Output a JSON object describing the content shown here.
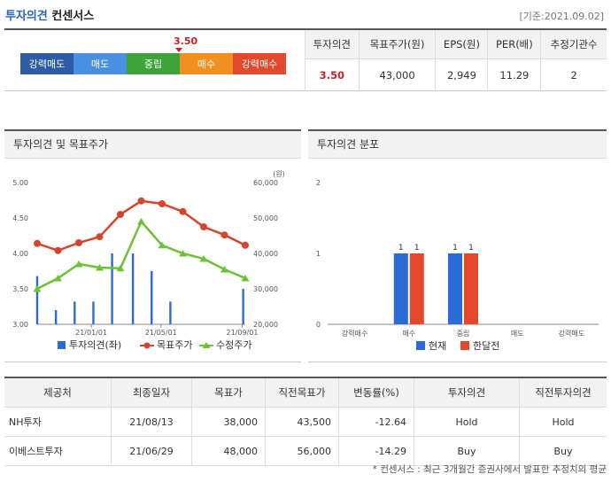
{
  "header": {
    "title_highlight": "투자의견",
    "title_rest": " 컨센서스",
    "basis": "[기준:2021.09.02]"
  },
  "scale": {
    "labels": [
      "강력매도",
      "매도",
      "중립",
      "매수",
      "강력매수"
    ],
    "colors": [
      "#2d5ba6",
      "#4a90e2",
      "#3fa33b",
      "#f2901f",
      "#e2492b"
    ],
    "current_value": "3.50"
  },
  "summary": {
    "headers": [
      "투자의견",
      "목표주가(원)",
      "EPS(원)",
      "PER(배)",
      "추정기관수"
    ],
    "values": [
      "3.50",
      "43,000",
      "2,949",
      "11.29",
      "2"
    ]
  },
  "panels": {
    "left_title": "투자의견 및 목표주가",
    "right_title": "투자의견 분포"
  },
  "chart_data": [
    {
      "type": "bar+line",
      "title": "투자의견 및 목표주가",
      "unit_label": "(원)",
      "y_left_ticks": [
        "5.00",
        "4.50",
        "4.00",
        "3.50",
        "3.00"
      ],
      "y_left_range": [
        3.0,
        5.0
      ],
      "y_right_ticks": [
        "60,000",
        "50,000",
        "40,000",
        "30,000",
        "20,000"
      ],
      "y_right_range": [
        20000,
        60000
      ],
      "x_ticks": [
        "21/01/01",
        "21/05/01",
        "21/09/01"
      ],
      "legend": [
        "투자의견(좌)",
        "목표주가",
        "수정주가"
      ],
      "colors": {
        "opinion": "#2b6bd6",
        "target": "#d8432c",
        "price": "#6cc236"
      },
      "opinion_bars": [
        {
          "x": 0.0,
          "value": 3.68
        },
        {
          "x": 0.09,
          "value": 3.2
        },
        {
          "x": 0.18,
          "value": 3.32
        },
        {
          "x": 0.27,
          "value": 3.32
        },
        {
          "x": 0.36,
          "value": 4.0
        },
        {
          "x": 0.46,
          "value": 4.0
        },
        {
          "x": 0.55,
          "value": 3.75
        },
        {
          "x": 0.64,
          "value": 3.32
        },
        {
          "x": 0.99,
          "value": 3.5
        }
      ],
      "target_price": [
        42800,
        40800,
        43000,
        44700,
        51000,
        54800,
        54000,
        51800,
        47500,
        45200,
        42300
      ],
      "adjusted_price": [
        30000,
        33000,
        37000,
        36000,
        35800,
        49000,
        42300,
        40000,
        38500,
        35500,
        33000
      ]
    },
    {
      "type": "bar",
      "title": "투자의견 분포",
      "categories": [
        "강력매수",
        "매수",
        "중립",
        "매도",
        "강력매도"
      ],
      "y_ticks": [
        "2",
        "1",
        "0"
      ],
      "ylim": [
        0,
        2
      ],
      "series": [
        {
          "name": "현재",
          "color": "#2b6bd6",
          "values": [
            0,
            1,
            1,
            0,
            0
          ]
        },
        {
          "name": "한달전",
          "color": "#e2492b",
          "values": [
            0,
            1,
            1,
            0,
            0
          ]
        }
      ]
    }
  ],
  "brokers": {
    "headers": [
      "제공처",
      "최종일자",
      "목표가",
      "직전목표가",
      "변동률(%)",
      "투자의견",
      "직전투자의견"
    ],
    "rows": [
      [
        "NH투자",
        "21/08/13",
        "38,000",
        "43,500",
        "-12.64",
        "Hold",
        "Hold"
      ],
      [
        "이베스트투자",
        "21/06/29",
        "48,000",
        "56,000",
        "-14.29",
        "Buy",
        "Buy"
      ]
    ]
  },
  "footnote": "* 컨센서스 : 최근 3개월간 증권사에서 발표한 추정치의 평균"
}
